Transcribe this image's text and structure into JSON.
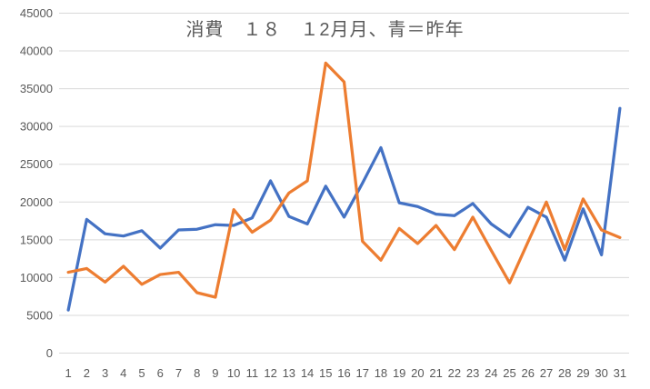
{
  "chart_title": "消費　１８　１2月月、青＝昨年",
  "colors": {
    "blue_series": "#4472C4",
    "orange_series": "#ED7D31",
    "gridline": "#D9D9D9",
    "axis_text": "#595959",
    "title_text": "#595959",
    "background": "#FFFFFF"
  },
  "chart_data": {
    "type": "line",
    "title": "消費　１８　１2月月、青＝昨年",
    "xlabel": "",
    "ylabel": "",
    "x": [
      1,
      2,
      3,
      4,
      5,
      6,
      7,
      8,
      9,
      10,
      11,
      12,
      13,
      14,
      15,
      16,
      17,
      18,
      19,
      20,
      21,
      22,
      23,
      24,
      25,
      26,
      27,
      28,
      29,
      30,
      31
    ],
    "xticks": [
      "1",
      "2",
      "3",
      "4",
      "5",
      "6",
      "7",
      "8",
      "9",
      "10",
      "11",
      "12",
      "13",
      "14",
      "15",
      "16",
      "17",
      "18",
      "19",
      "20",
      "21",
      "22",
      "23",
      "24",
      "25",
      "26",
      "27",
      "28",
      "29",
      "30",
      "31"
    ],
    "ylim": [
      0,
      45000
    ],
    "ytick_step": 5000,
    "yticks": [
      "0",
      "5000",
      "10000",
      "15000",
      "20000",
      "25000",
      "30000",
      "35000",
      "40000",
      "45000"
    ],
    "grid": true,
    "legend_position": "none (title text indicates 青＝昨年 / blue = last year)",
    "series": [
      {
        "name": "青＝昨年",
        "color": "#4472C4",
        "values": [
          5700,
          17700,
          15800,
          15500,
          16200,
          13900,
          16300,
          16400,
          17000,
          16900,
          17900,
          22800,
          18100,
          17100,
          22100,
          18000,
          22500,
          27200,
          19900,
          19400,
          18400,
          18200,
          19800,
          17100,
          15400,
          19300,
          18000,
          12300,
          19100,
          13000,
          32400
        ]
      },
      {
        "name": "オレンジ",
        "color": "#ED7D31",
        "values": [
          10700,
          11200,
          9400,
          11500,
          9100,
          10400,
          10700,
          8000,
          7400,
          19000,
          16000,
          17600,
          21200,
          22800,
          38400,
          35900,
          14800,
          12300,
          16500,
          14500,
          16900,
          13700,
          18000,
          13600,
          9300,
          14700,
          20000,
          13700,
          20400,
          16300,
          15300
        ]
      }
    ]
  }
}
